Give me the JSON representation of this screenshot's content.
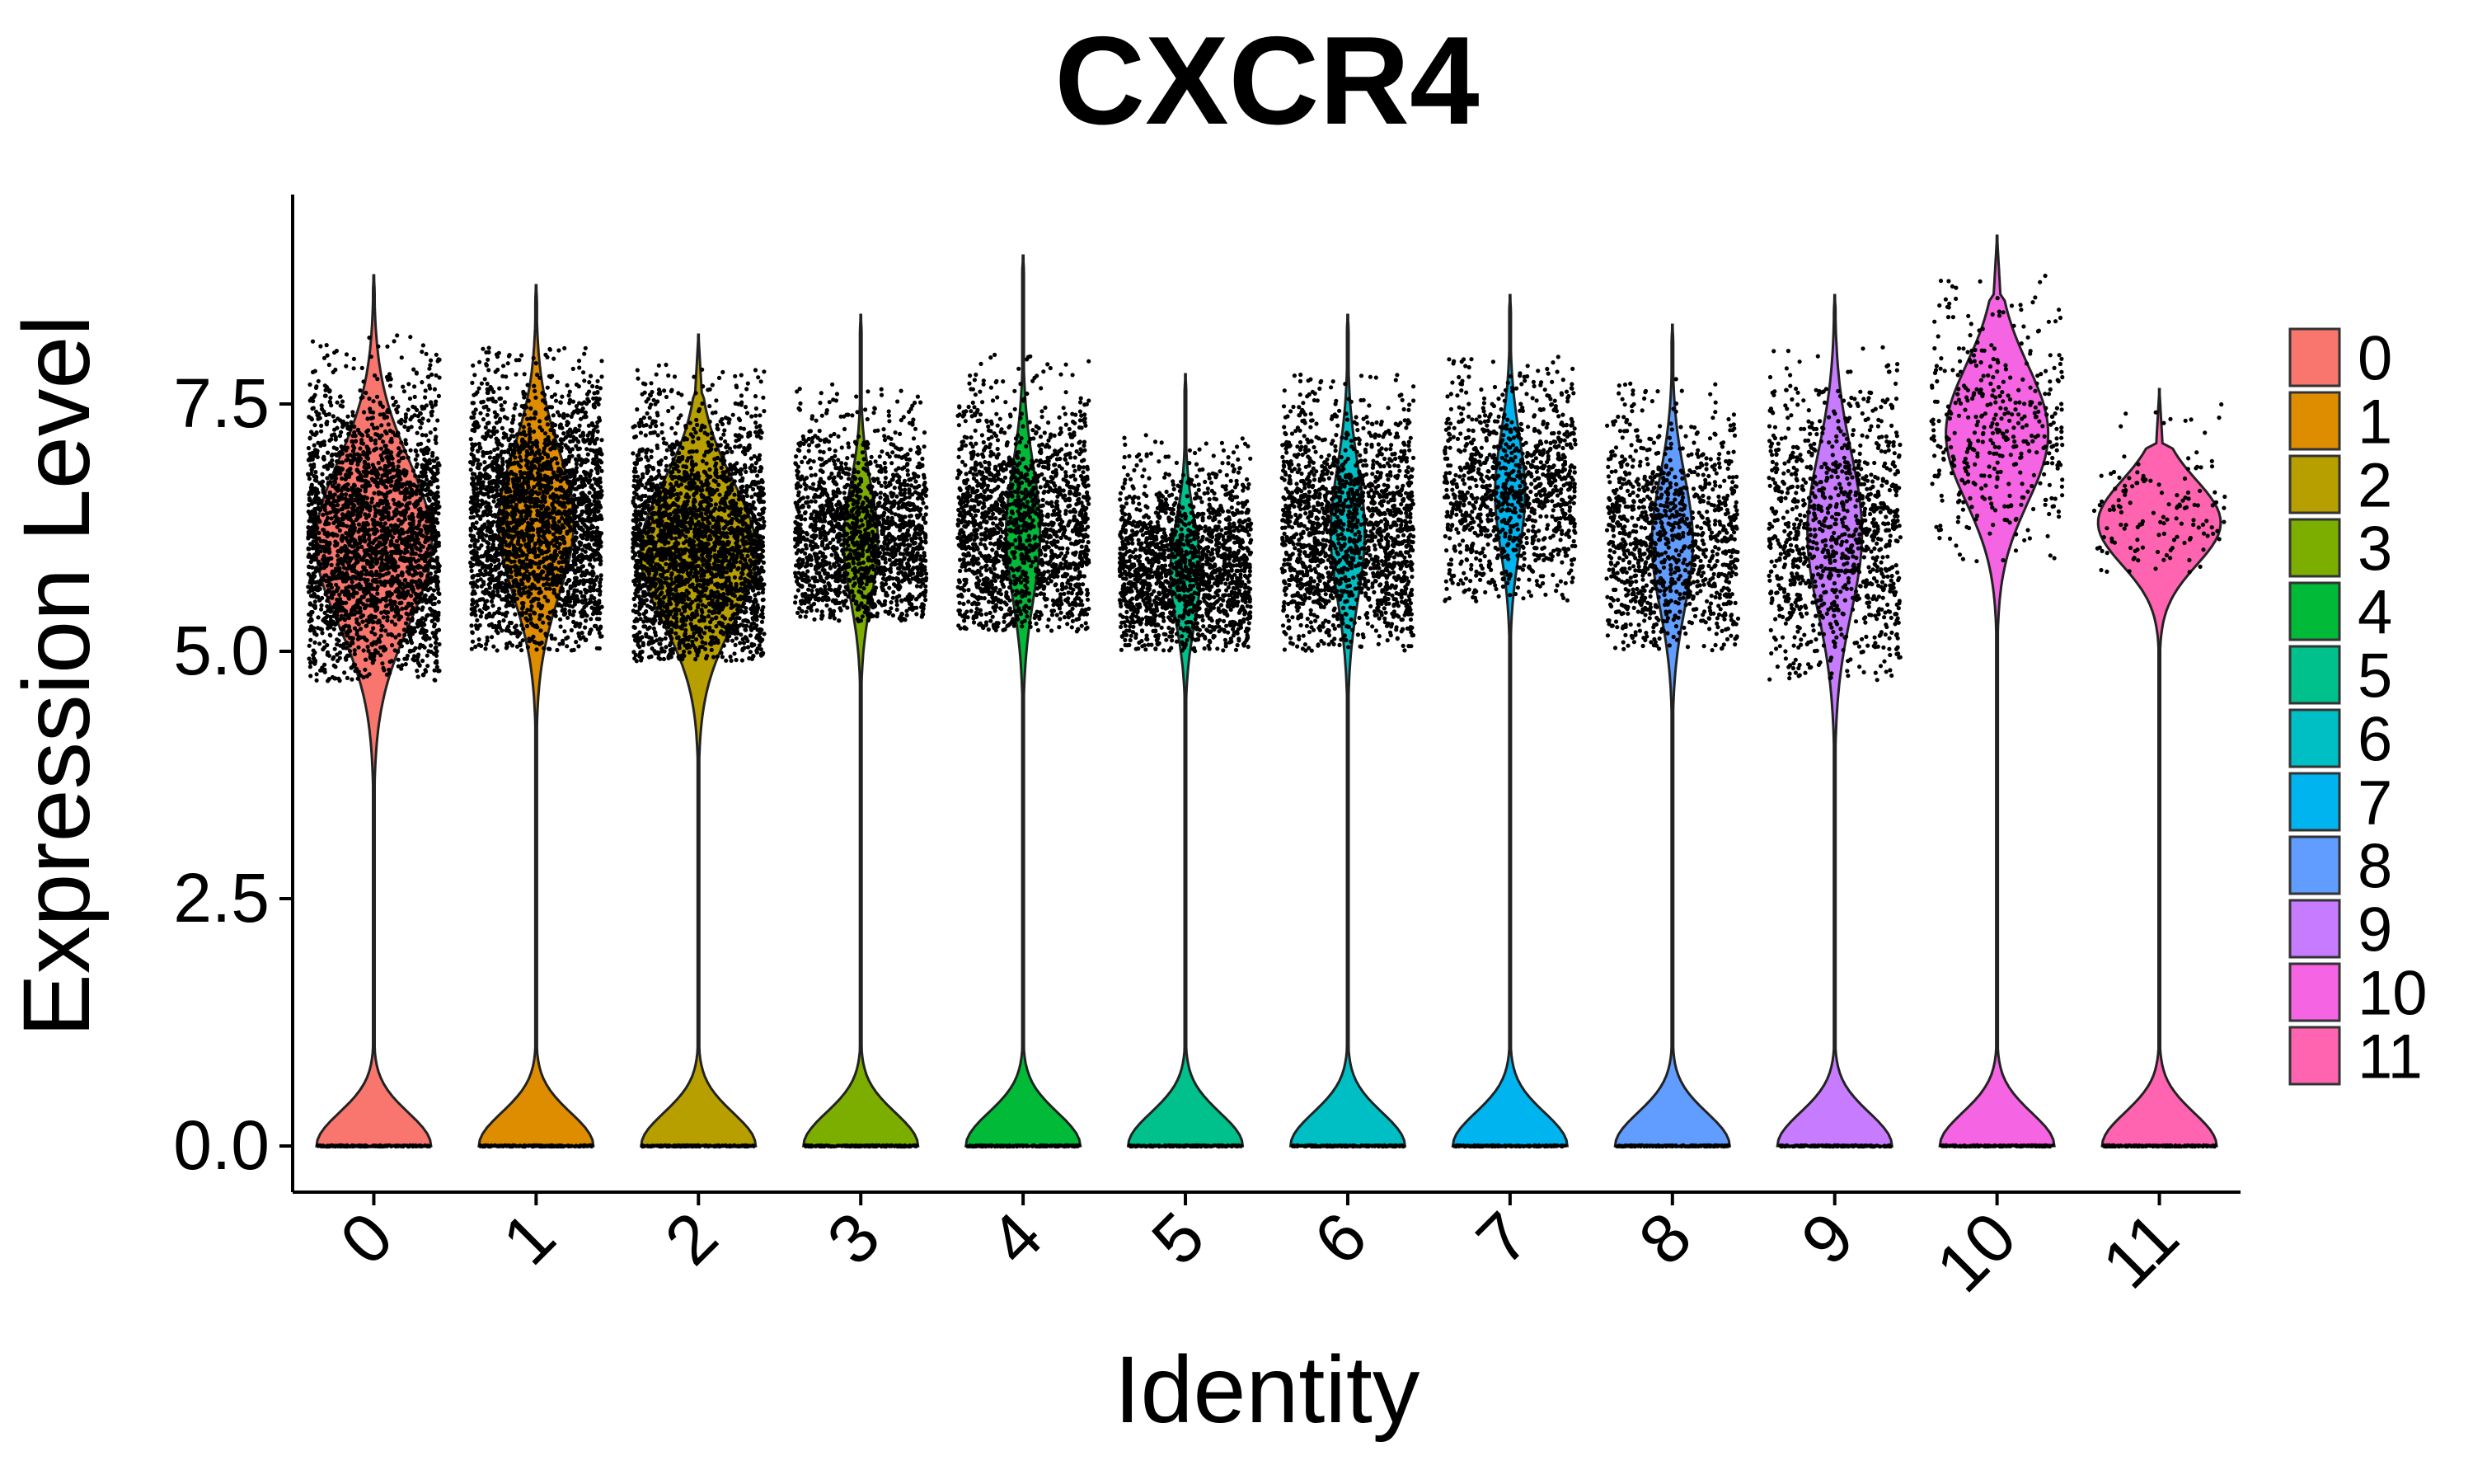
{
  "chart_data": {
    "type": "violin",
    "title": "CXCR4",
    "xlabel": "Identity",
    "ylabel": "Expression Level",
    "ylim": [
      -0.45,
      9.5
    ],
    "yticks": [
      0.0,
      2.5,
      5.0,
      7.5
    ],
    "ytick_labels": [
      "0.0",
      "2.5",
      "5.0",
      "7.5"
    ],
    "grid": false,
    "legend_position": "right",
    "categories": [
      "0",
      "1",
      "2",
      "3",
      "4",
      "5",
      "6",
      "7",
      "8",
      "9",
      "10",
      "11"
    ],
    "colors": [
      "#F8766D",
      "#DE8C00",
      "#B79F00",
      "#7CAE00",
      "#00BA38",
      "#00C08B",
      "#00BFC4",
      "#00B4F0",
      "#619CFF",
      "#C77CFF",
      "#F564E3",
      "#FF64B0"
    ],
    "series": [
      {
        "name": "0",
        "max": 8.8,
        "upper_center": 6.1,
        "upper_low": 4.7,
        "upper_high": 8.2,
        "upper_halfwidth": 0.85,
        "dot_density": "very high"
      },
      {
        "name": "1",
        "max": 8.7,
        "upper_center": 6.3,
        "upper_low": 5.0,
        "upper_high": 8.1,
        "upper_halfwidth": 0.55,
        "dot_density": "very high"
      },
      {
        "name": "2",
        "max": 8.2,
        "upper_center": 6.0,
        "upper_low": 4.9,
        "upper_high": 7.9,
        "upper_halfwidth": 0.85,
        "dot_density": "very high"
      },
      {
        "name": "3",
        "max": 8.4,
        "upper_center": 6.1,
        "upper_low": 5.3,
        "upper_high": 7.7,
        "upper_halfwidth": 0.25,
        "dot_density": "high"
      },
      {
        "name": "4",
        "max": 9.0,
        "upper_center": 6.2,
        "upper_low": 5.2,
        "upper_high": 8.0,
        "upper_halfwidth": 0.25,
        "dot_density": "high"
      },
      {
        "name": "5",
        "max": 7.8,
        "upper_center": 5.8,
        "upper_low": 5.0,
        "upper_high": 7.2,
        "upper_halfwidth": 0.22,
        "dot_density": "high"
      },
      {
        "name": "6",
        "max": 8.4,
        "upper_center": 6.2,
        "upper_low": 5.0,
        "upper_high": 7.8,
        "upper_halfwidth": 0.25,
        "dot_density": "high"
      },
      {
        "name": "7",
        "max": 8.6,
        "upper_center": 6.6,
        "upper_low": 5.5,
        "upper_high": 8.0,
        "upper_halfwidth": 0.22,
        "dot_density": "medium"
      },
      {
        "name": "8",
        "max": 8.3,
        "upper_center": 6.1,
        "upper_low": 5.0,
        "upper_high": 7.8,
        "upper_halfwidth": 0.3,
        "dot_density": "medium"
      },
      {
        "name": "9",
        "max": 8.6,
        "upper_center": 6.2,
        "upper_low": 4.7,
        "upper_high": 8.1,
        "upper_halfwidth": 0.4,
        "dot_density": "medium"
      },
      {
        "name": "10",
        "max": 9.2,
        "upper_center": 7.2,
        "upper_low": 5.9,
        "upper_high": 8.8,
        "upper_halfwidth": 0.75,
        "dot_density": "low"
      },
      {
        "name": "11",
        "max": 7.65,
        "upper_center": 6.3,
        "upper_low": 5.8,
        "upper_high": 7.6,
        "upper_halfwidth": 0.9,
        "dot_density": "very low"
      }
    ]
  }
}
